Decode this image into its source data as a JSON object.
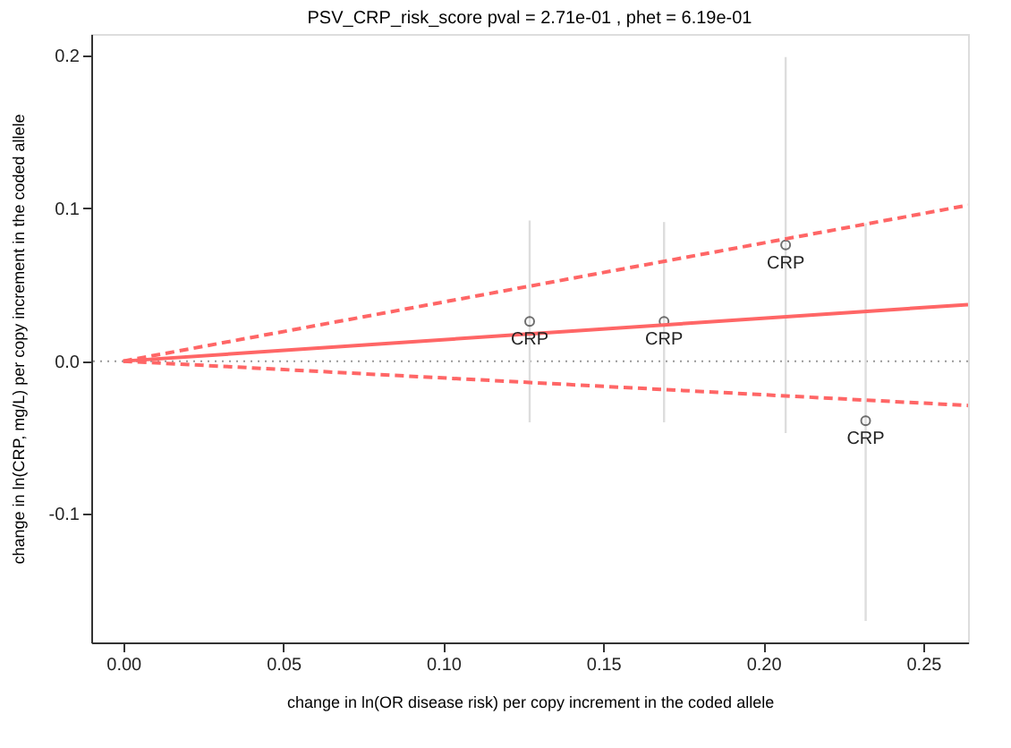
{
  "chart_data": {
    "type": "scatter",
    "title": "PSV_CRP_risk_score  pval =  2.71e-01 , phet =  6.19e-01",
    "xlabel": "change in ln(OR disease risk) per copy increment in the coded allele",
    "ylabel": "change in ln(CRP, mg/L) per copy increment in the coded allele",
    "series": [
      {
        "color": "#333333",
        "marker": "circle",
        "x": [
          0.127,
          0.169,
          0.207,
          0.232
        ],
        "values": [
          0.026,
          0.026,
          0.076,
          -0.039
        ],
        "errors": [
          [
            -0.04,
            0.092
          ],
          [
            -0.04,
            0.091
          ],
          [
            -0.047,
            0.199
          ],
          [
            -0.17,
            0.09
          ]
        ]
      },
      {
        "type": "line",
        "color": "#ff6666",
        "line_style": "solid",
        "x": [
          0,
          0.264
        ],
        "values": [
          0,
          0.037
        ]
      },
      {
        "type": "line",
        "color": "#ff6666",
        "line_style": "dashed",
        "x": [
          0,
          0.264
        ],
        "values": [
          0,
          0.102
        ]
      },
      {
        "type": "line",
        "color": "#ff6666",
        "line_style": "dashed",
        "x": [
          0,
          0.264
        ],
        "values": [
          0,
          -0.029
        ]
      }
    ],
    "annotations": [
      {
        "text": "CRP",
        "x": 0.127,
        "y": 0.026
      },
      {
        "text": "CRP",
        "x": 0.169,
        "y": 0.026
      },
      {
        "text": "CRP",
        "x": 0.207,
        "y": 0.076
      },
      {
        "text": "CRP",
        "x": 0.232,
        "y": -0.039
      }
    ],
    "ref_lines": [
      {
        "axis": "y",
        "value": 0,
        "color": "#999999",
        "line_style": "dotted"
      }
    ],
    "xlim": [
      -0.01,
      0.264
    ],
    "xticks": [
      {
        "value": 0,
        "label": "0.00"
      },
      0.05,
      {
        "value": 0.1,
        "label": "0.10"
      },
      0.15,
      {
        "value": 0.2,
        "label": "0.20"
      },
      0.25
    ],
    "ylim": [
      -0.184,
      0.214
    ],
    "yticks": [
      -0.1,
      {
        "value": 0,
        "label": "0.0"
      },
      0.1,
      0.2
    ],
    "grid": false
  }
}
